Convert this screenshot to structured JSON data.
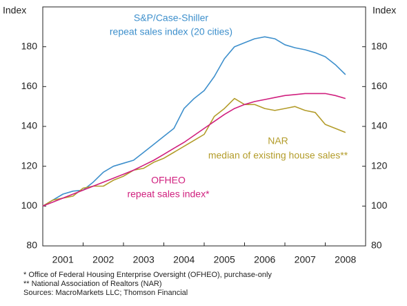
{
  "chart_data": {
    "type": "line",
    "y_label": "Index",
    "y2_label": "Index",
    "categories": [
      2001,
      2002,
      2003,
      2004,
      2005,
      2006,
      2007,
      2008
    ],
    "x": [
      2001,
      2001.25,
      2001.5,
      2001.75,
      2002,
      2002.25,
      2002.5,
      2002.75,
      2003,
      2003.25,
      2003.5,
      2003.75,
      2004,
      2004.25,
      2004.5,
      2004.75,
      2005,
      2005.25,
      2005.5,
      2005.75,
      2006,
      2006.25,
      2006.5,
      2006.75,
      2007,
      2007.25,
      2007.5,
      2007.75,
      2008,
      2008.25,
      2008.5
    ],
    "xlim": [
      2001,
      2009
    ],
    "xticks": [
      2001,
      2002,
      2003,
      2004,
      2005,
      2006,
      2007,
      2008,
      2009
    ],
    "ylim": [
      80,
      200
    ],
    "yticks": [
      80,
      100,
      120,
      140,
      160,
      180
    ],
    "y2lim": [
      80,
      200
    ],
    "y2ticks": [
      80,
      100,
      120,
      140,
      160,
      180
    ],
    "series": [
      {
        "name": "S&P/Case-Shiller",
        "description": "repeat sales index (20 cities)",
        "color": "#3d8fcc",
        "values": [
          100,
          103,
          106,
          107.5,
          108,
          112,
          117,
          120,
          121.5,
          123,
          127,
          131,
          135,
          139,
          149,
          154,
          158,
          165,
          174,
          180,
          182,
          184,
          185,
          184,
          181,
          179.5,
          178.5,
          177,
          175,
          171,
          166
        ]
      },
      {
        "name": "NAR",
        "description": "median of existing house sales**",
        "color": "#b39c2a",
        "values": [
          100,
          103,
          104,
          105,
          109,
          110,
          110,
          113,
          115,
          118,
          119,
          122,
          124,
          127,
          130,
          133,
          136,
          145,
          149,
          154,
          151,
          151,
          149,
          148,
          149,
          150,
          148,
          147,
          141,
          139,
          137
        ]
      },
      {
        "name": "OFHEO",
        "description": "repeat sales index*",
        "color": "#d01f7e",
        "values": [
          100,
          102,
          104,
          106,
          108,
          110,
          112,
          114,
          116,
          118,
          120.5,
          123,
          126,
          129,
          132,
          135.5,
          139,
          142.5,
          146,
          149,
          151,
          152.5,
          153.5,
          154.5,
          155.5,
          156,
          156.5,
          156.5,
          156.5,
          155.5,
          154
        ]
      }
    ],
    "footnotes": [
      "*  Office of Federal Housing Enterprise Oversight (OFHEO), purchase-only",
      "** National Association of Realtors (NAR)",
      "Sources: MacroMarkets LLC; Thomson Financial"
    ]
  }
}
